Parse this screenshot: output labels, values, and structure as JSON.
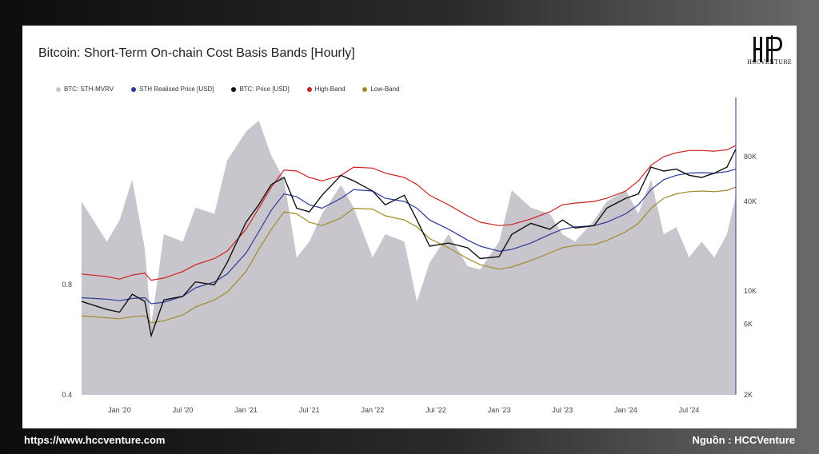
{
  "title": "Bitcoin: Short-Term On-chain Cost Basis Bands [Hourly]",
  "logo_text": "HCCVENTURE",
  "footer": {
    "website": "https://www.hccventure.com",
    "source": "Nguồn : HCCVenture"
  },
  "colors": {
    "mvrv": "#c8c6cc",
    "realised": "#2a3a9a",
    "price": "#111111",
    "high": "#cc2222",
    "low": "#a08a2a"
  },
  "chart_data": {
    "type": "line",
    "title": "Bitcoin: Short-Term On-chain Cost Basis Bands [Hourly]",
    "legend": [
      "BTC: STH-MVRV",
      "STH Realised Price [USD]",
      "BTC: Price [USD]",
      "High-Band",
      "Low-Band"
    ],
    "legend_position": "top-left",
    "grid": false,
    "x_ticks": [
      "Jan '20",
      "Jul '20",
      "Jan '21",
      "Jul '21",
      "Jan '22",
      "Jul '22",
      "Jan '23",
      "Jul '23",
      "Jan '24",
      "Jul '24"
    ],
    "y_left_ticks": [
      {
        "v": 0.8,
        "label": "0.8"
      },
      {
        "v": 0.4,
        "label": "0.4"
      }
    ],
    "y_left_scale": "log",
    "y_left_range": [
      0.4,
      2.6
    ],
    "y_right_ticks": [
      {
        "v": 80000,
        "label": "80K"
      },
      {
        "v": 40000,
        "label": "40K"
      },
      {
        "v": 10000,
        "label": "10K"
      },
      {
        "v": 6000,
        "label": "6K"
      },
      {
        "v": 2000,
        "label": "2K"
      }
    ],
    "y_right_scale": "log",
    "y_right_range": [
      2000,
      200000
    ],
    "x": [
      2019.7,
      2019.9,
      2020.0,
      2020.1,
      2020.2,
      2020.25,
      2020.35,
      2020.5,
      2020.6,
      2020.75,
      2020.85,
      2021.0,
      2021.1,
      2021.2,
      2021.3,
      2021.4,
      2021.5,
      2021.6,
      2021.75,
      2021.85,
      2022.0,
      2022.1,
      2022.25,
      2022.35,
      2022.45,
      2022.6,
      2022.75,
      2022.85,
      2023.0,
      2023.1,
      2023.25,
      2023.4,
      2023.5,
      2023.6,
      2023.75,
      2023.85,
      2024.0,
      2024.1,
      2024.2,
      2024.3,
      2024.4,
      2024.5,
      2024.6,
      2024.7,
      2024.8,
      2024.87
    ],
    "series": [
      {
        "name": "BTC: STH-MVRV",
        "values": [
          1.35,
          1.05,
          1.2,
          1.55,
          1.0,
          0.62,
          1.1,
          1.05,
          1.3,
          1.25,
          1.75,
          2.1,
          2.25,
          1.8,
          1.55,
          0.95,
          1.05,
          1.25,
          1.5,
          1.3,
          0.95,
          1.1,
          1.05,
          0.72,
          0.92,
          1.1,
          0.9,
          0.88,
          1.05,
          1.45,
          1.3,
          1.25,
          1.1,
          1.05,
          1.2,
          1.35,
          1.45,
          1.25,
          1.55,
          1.1,
          1.15,
          0.95,
          1.05,
          0.95,
          1.1,
          1.4
        ]
      },
      {
        "name": "STH Realised Price [USD]",
        "values": [
          9000,
          8800,
          8600,
          8900,
          9000,
          8200,
          8400,
          9200,
          10500,
          11500,
          13000,
          18000,
          25000,
          35000,
          45000,
          43000,
          38000,
          36000,
          42000,
          48000,
          47000,
          42000,
          40000,
          36000,
          30000,
          26000,
          22000,
          20000,
          18500,
          19000,
          21000,
          24000,
          26000,
          27000,
          27500,
          29000,
          33000,
          38000,
          48000,
          56000,
          60000,
          62000,
          62500,
          62000,
          63500,
          66000
        ]
      },
      {
        "name": "BTC: Price [USD]",
        "values": [
          8500,
          7500,
          7200,
          9500,
          8500,
          5000,
          8700,
          9200,
          11500,
          11000,
          15500,
          29000,
          38000,
          52000,
          58000,
          36000,
          34000,
          44000,
          60000,
          55000,
          47000,
          38000,
          44000,
          30000,
          20000,
          21000,
          19500,
          16500,
          17000,
          24000,
          28500,
          26000,
          30000,
          26500,
          27500,
          36000,
          42000,
          45000,
          68000,
          64000,
          66000,
          60000,
          58000,
          62000,
          68000,
          90000
        ]
      },
      {
        "name": "High-Band",
        "values": [
          13000,
          12500,
          12000,
          12800,
          13200,
          11800,
          12200,
          13500,
          15000,
          16500,
          18500,
          26000,
          36000,
          50000,
          65000,
          64000,
          58000,
          55000,
          60000,
          68000,
          67000,
          62000,
          58000,
          52000,
          44000,
          38000,
          32000,
          29000,
          27500,
          28000,
          30500,
          34000,
          38000,
          39000,
          40000,
          42000,
          47000,
          55000,
          70000,
          80000,
          85000,
          88000,
          88000,
          87000,
          89000,
          95000
        ]
      },
      {
        "name": "Low-Band",
        "values": [
          6800,
          6600,
          6500,
          6700,
          6800,
          6100,
          6300,
          6900,
          7800,
          8700,
          9800,
          13500,
          19000,
          26000,
          34000,
          33000,
          29000,
          27500,
          31000,
          36000,
          35500,
          32000,
          30000,
          27000,
          22500,
          19500,
          16500,
          15000,
          14000,
          14500,
          16000,
          18000,
          19500,
          20200,
          20500,
          21800,
          25000,
          28500,
          36000,
          42000,
          45000,
          46500,
          47000,
          46500,
          47500,
          50000
        ]
      }
    ]
  }
}
